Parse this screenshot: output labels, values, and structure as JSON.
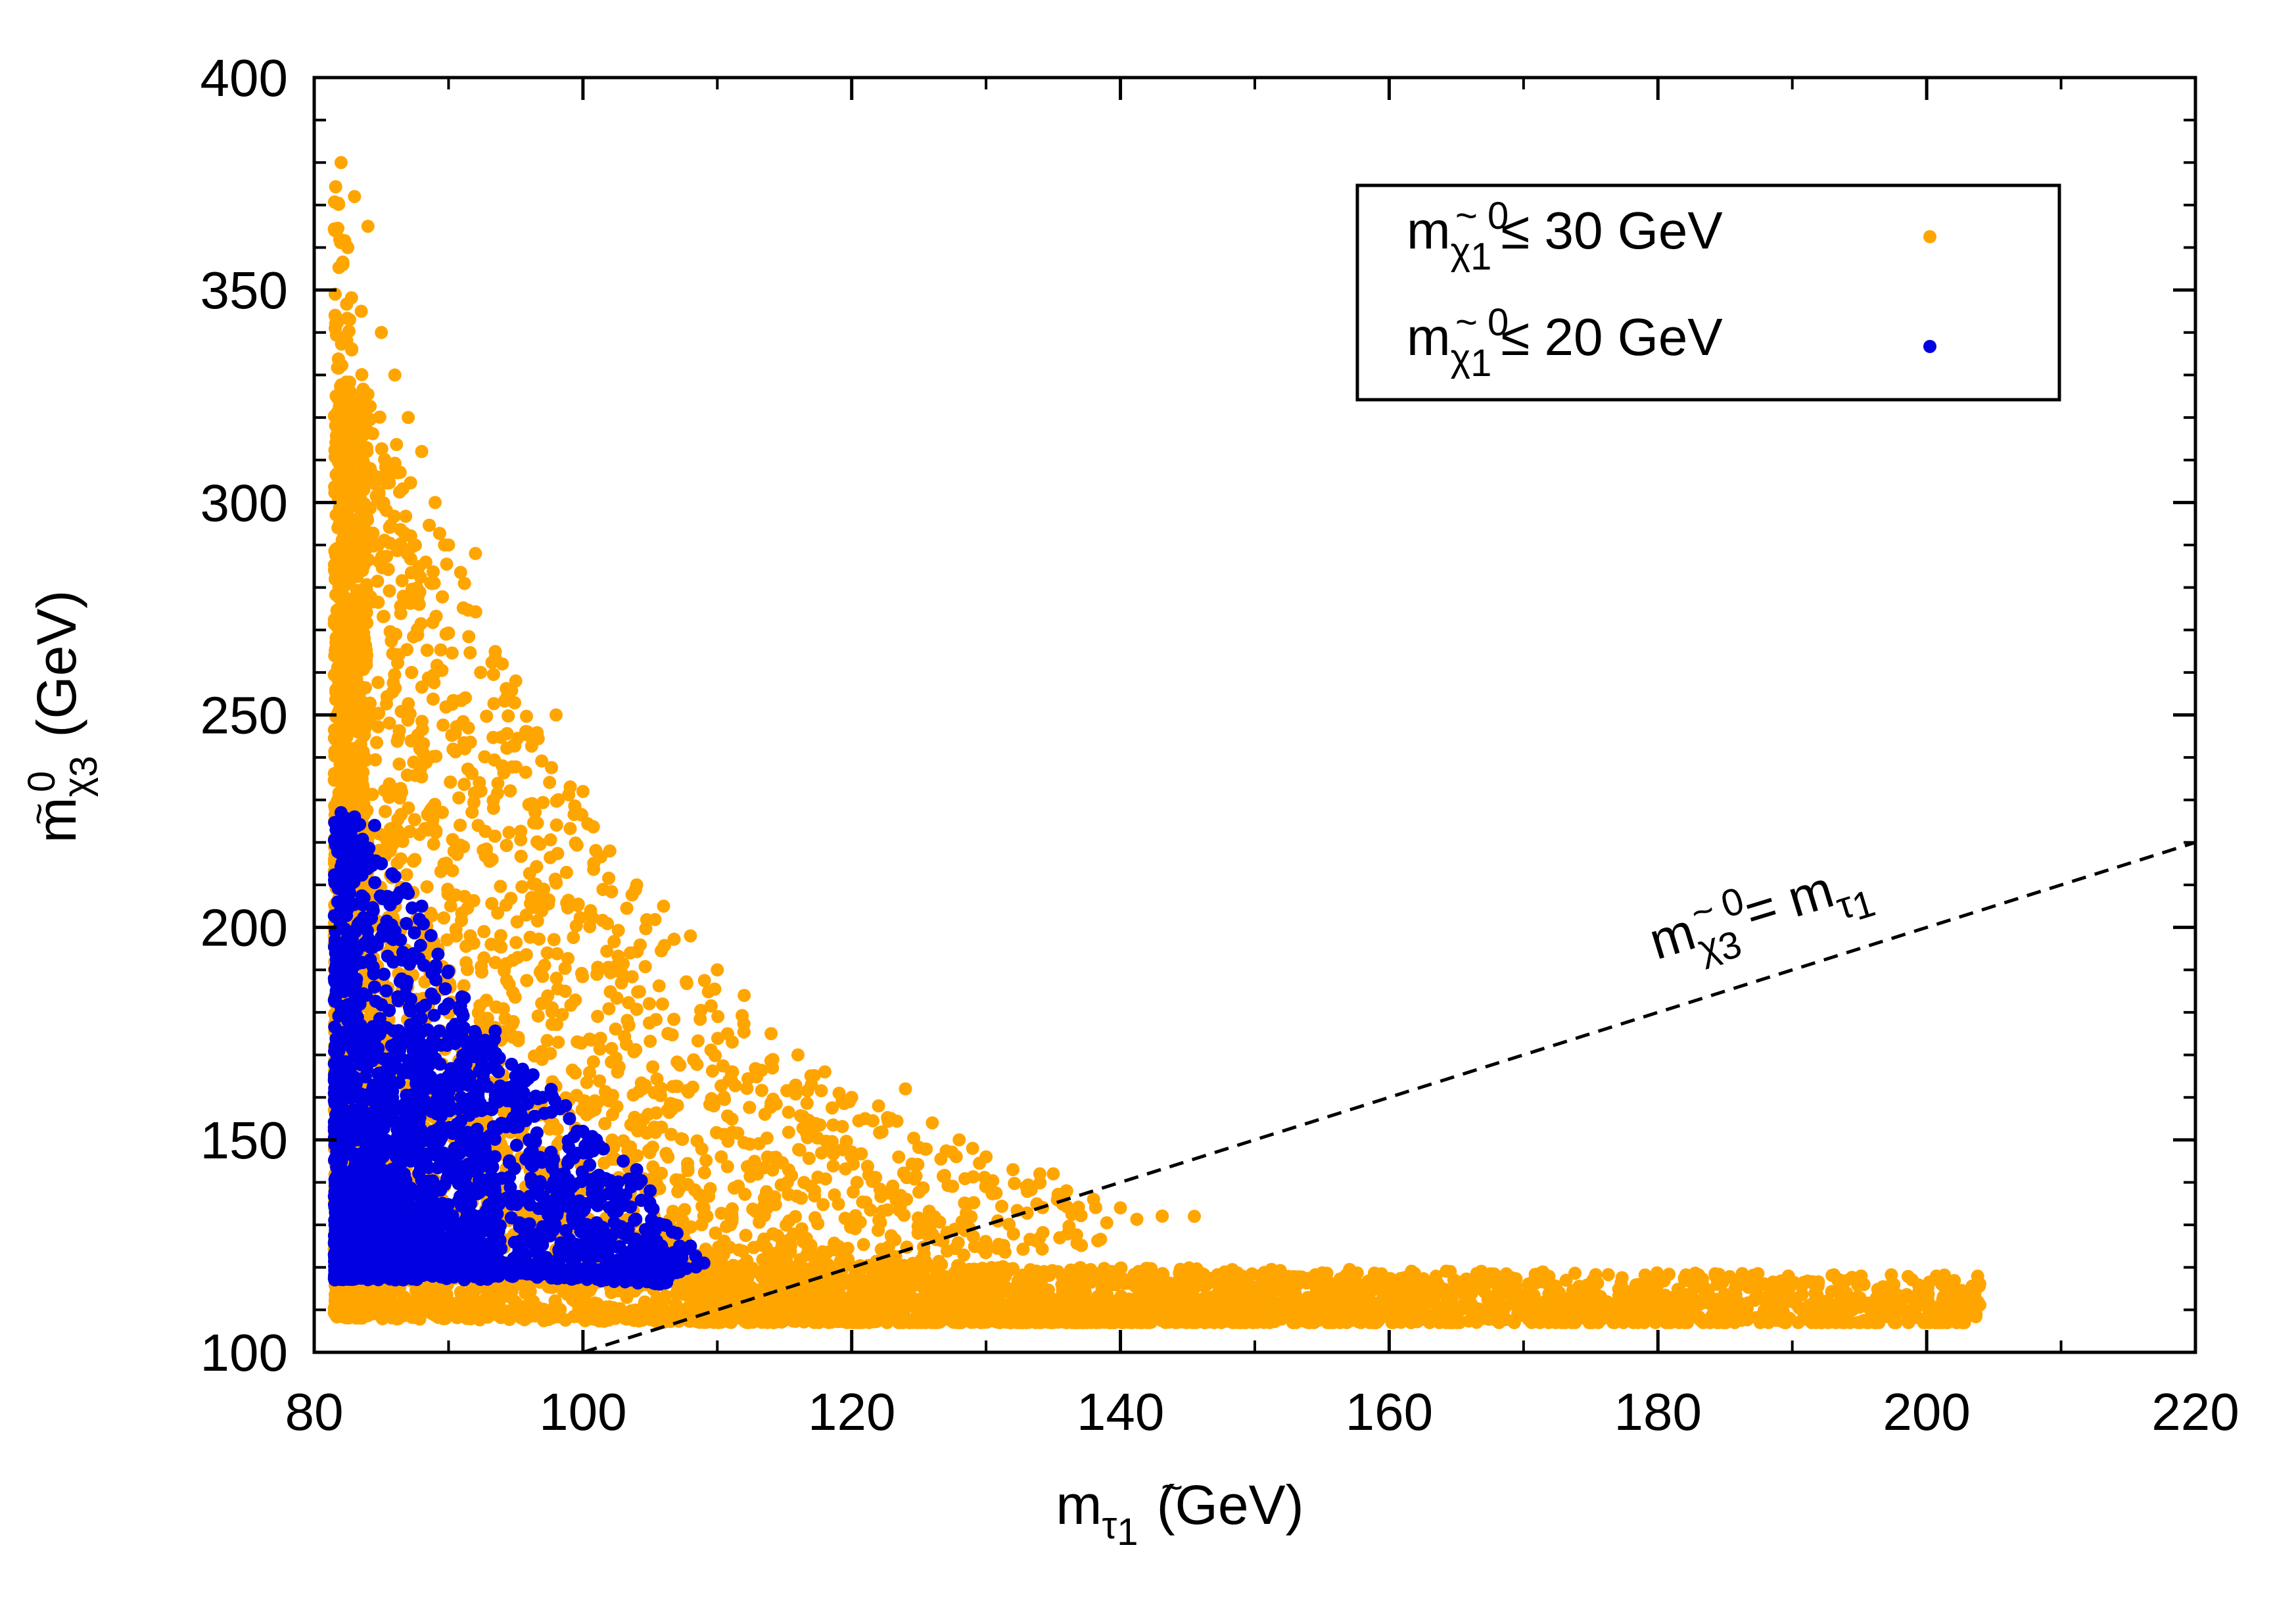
{
  "chart_data": {
    "type": "scatter",
    "title": "",
    "xlabel": {
      "main": "m",
      "tilde": "~",
      "symbol": "τ",
      "index": "1",
      "unit": "(GeV)"
    },
    "ylabel": {
      "main": "m",
      "tilde": "~",
      "symbol": "χ",
      "sup": "0",
      "index": "3",
      "unit": "(GeV)"
    },
    "xlim": [
      80,
      220
    ],
    "ylim": [
      100,
      400
    ],
    "xticks": [
      80,
      100,
      120,
      140,
      160,
      180,
      200,
      220
    ],
    "yticks": [
      100,
      150,
      200,
      250,
      300,
      350,
      400
    ],
    "xtick_labels": [
      "80",
      "100",
      "120",
      "140",
      "160",
      "180",
      "200",
      "220"
    ],
    "ytick_labels": [
      "100",
      "150",
      "200",
      "250",
      "300",
      "350",
      "400"
    ],
    "grid": false,
    "legend_position": "top-right",
    "series": [
      {
        "name": "m_χ1 ≤ 30 GeV",
        "legend": {
          "main": "m",
          "tilde": "~",
          "symbol": "χ",
          "sup": "0",
          "index": "1",
          "rest": "≤ 30 GeV"
        },
        "color": "#FFA500",
        "region_description": "dense triangular region",
        "hull": [
          [
            81.5,
            380
          ],
          [
            83,
            345
          ],
          [
            86,
            315
          ],
          [
            90,
            290
          ],
          [
            95,
            255
          ],
          [
            100,
            230
          ],
          [
            105,
            205
          ],
          [
            110,
            185
          ],
          [
            115,
            170
          ],
          [
            120,
            160
          ],
          [
            125,
            152
          ],
          [
            130,
            145
          ],
          [
            135,
            140
          ],
          [
            140,
            134
          ],
          [
            145,
            131
          ],
          [
            140,
            126
          ],
          [
            130,
            122
          ],
          [
            125,
            120
          ],
          [
            140,
            120
          ],
          [
            160,
            119
          ],
          [
            180,
            114
          ],
          [
            204,
            112
          ],
          [
            204,
            108
          ],
          [
            150,
            107
          ],
          [
            110,
            107
          ],
          [
            81.5,
            108
          ]
        ],
        "band": {
          "x_range": [
            108,
            204
          ],
          "y_range": [
            107,
            121
          ]
        },
        "points": [
          [
            82,
            380
          ],
          [
            83,
            372
          ],
          [
            84,
            365
          ],
          [
            82.5,
            360
          ],
          [
            83.5,
            345
          ],
          [
            85,
            340
          ],
          [
            86,
            330
          ],
          [
            87,
            320
          ],
          [
            88,
            312
          ],
          [
            89,
            300
          ],
          [
            90,
            290
          ],
          [
            92,
            288
          ],
          [
            94,
            262
          ],
          [
            95,
            258
          ],
          [
            98,
            250
          ],
          [
            100,
            232
          ],
          [
            102,
            218
          ],
          [
            104,
            210
          ],
          [
            106,
            205
          ],
          [
            108,
            198
          ],
          [
            110,
            190
          ],
          [
            112,
            184
          ],
          [
            114,
            175
          ],
          [
            116,
            170
          ],
          [
            118,
            166
          ],
          [
            120,
            160
          ],
          [
            122,
            158
          ],
          [
            124,
            162
          ],
          [
            126,
            154
          ],
          [
            128,
            150
          ],
          [
            130,
            146
          ],
          [
            132,
            143
          ],
          [
            134,
            142
          ],
          [
            136,
            138
          ],
          [
            138,
            136
          ],
          [
            140,
            134
          ],
          [
            145.5,
            132
          ],
          [
            135,
            142
          ],
          [
            133,
            139
          ],
          [
            129,
            148
          ],
          [
            121,
            155
          ],
          [
            117,
            163
          ]
        ]
      },
      {
        "name": "m_χ1 ≤ 20 GeV",
        "legend": {
          "main": "m",
          "tilde": "~",
          "symbol": "χ",
          "sup": "0",
          "index": "1",
          "rest": "≤ 20 GeV"
        },
        "color": "#0000E0",
        "hull": [
          [
            81.5,
            227
          ],
          [
            84,
            224
          ],
          [
            86,
            212
          ],
          [
            88,
            205
          ],
          [
            90,
            190
          ],
          [
            92,
            180
          ],
          [
            96,
            168
          ],
          [
            100,
            155
          ],
          [
            104,
            143
          ],
          [
            107,
            128
          ],
          [
            109,
            121
          ],
          [
            106,
            116
          ],
          [
            100,
            117
          ],
          [
            90,
            118
          ],
          [
            81.5,
            117
          ]
        ],
        "points": [
          [
            82,
            227
          ],
          [
            83,
            226
          ],
          [
            84.5,
            224
          ],
          [
            85,
            215
          ],
          [
            86,
            212
          ],
          [
            87,
            208
          ],
          [
            88,
            205
          ],
          [
            89,
            190
          ],
          [
            90,
            182
          ],
          [
            91,
            180
          ],
          [
            92,
            175
          ],
          [
            93,
            170
          ],
          [
            95,
            165
          ],
          [
            97,
            160
          ],
          [
            99,
            155
          ],
          [
            101,
            150
          ],
          [
            103,
            145
          ],
          [
            104,
            143
          ],
          [
            105,
            138
          ],
          [
            106,
            130
          ],
          [
            107,
            128
          ],
          [
            108,
            125
          ],
          [
            109,
            121
          ],
          [
            102,
            140
          ],
          [
            100,
            152
          ],
          [
            98,
            142
          ],
          [
            96,
            150
          ]
        ]
      }
    ],
    "reference_line": {
      "name": "m_χ3 = m_τ1",
      "style": "dashed",
      "color": "#000000",
      "slope": 1,
      "x_range": [
        100,
        220
      ],
      "label": {
        "main": "m",
        "tilde": "~",
        "symbol": "χ",
        "sup": "0",
        "index": "3",
        "eq": "=",
        "main2": "m",
        "symbol2": "τ",
        "index2": "1"
      },
      "label_anchor_data": [
        180,
        200
      ]
    }
  }
}
